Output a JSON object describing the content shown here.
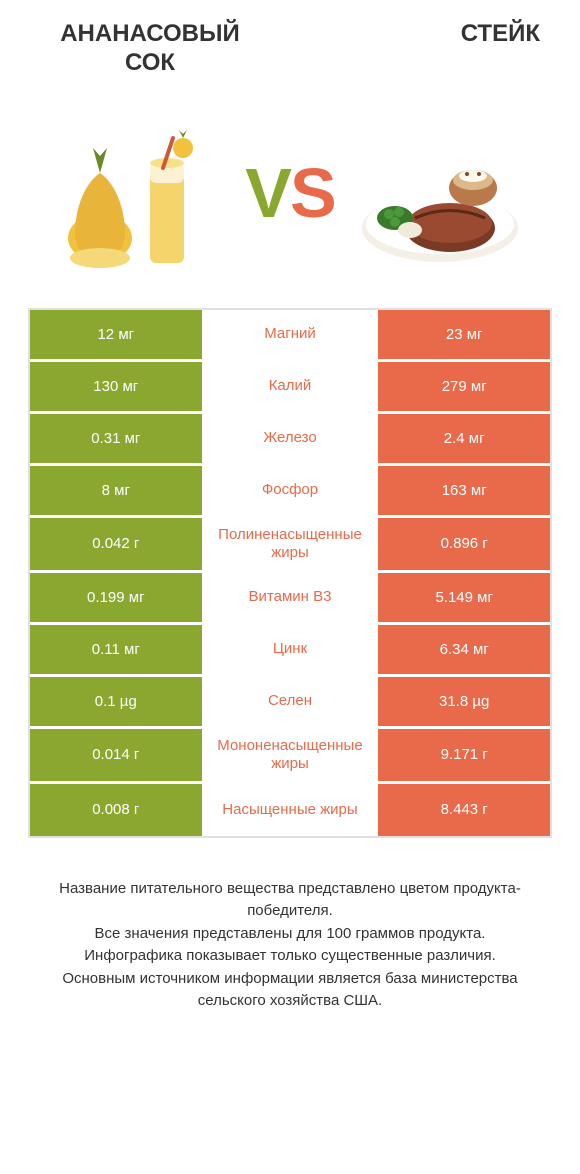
{
  "header": {
    "left_title": "АНАНАСОВЫЙ\nСОК",
    "right_title": "СТЕЙК"
  },
  "vs": {
    "v": "V",
    "s": "S"
  },
  "colors": {
    "left_bg": "#8aa82f",
    "right_bg": "#e86a4a",
    "left_text": "#8aa82f",
    "right_text": "#e86a4a",
    "row_sep": "#ffffff",
    "border": "#e0e0e0"
  },
  "typography": {
    "title_fontsize": 24,
    "cell_fontsize": 15,
    "vs_fontsize": 70,
    "footer_fontsize": 15
  },
  "table": {
    "rows": [
      {
        "left": "12 мг",
        "label": "Магний",
        "right": "23 мг",
        "winner": "right"
      },
      {
        "left": "130 мг",
        "label": "Калий",
        "right": "279 мг",
        "winner": "right"
      },
      {
        "left": "0.31 мг",
        "label": "Железо",
        "right": "2.4 мг",
        "winner": "right"
      },
      {
        "left": "8 мг",
        "label": "Фосфор",
        "right": "163 мг",
        "winner": "right"
      },
      {
        "left": "0.042 г",
        "label": "Полиненасыщенные жиры",
        "right": "0.896 г",
        "winner": "right"
      },
      {
        "left": "0.199 мг",
        "label": "Витамин B3",
        "right": "5.149 мг",
        "winner": "right"
      },
      {
        "left": "0.11 мг",
        "label": "Цинк",
        "right": "6.34 мг",
        "winner": "right"
      },
      {
        "left": "0.1 µg",
        "label": "Селен",
        "right": "31.8 µg",
        "winner": "right"
      },
      {
        "left": "0.014 г",
        "label": "Мононенасыщенные жиры",
        "right": "9.171 г",
        "winner": "right"
      },
      {
        "left": "0.008 г",
        "label": "Насыщенные жиры",
        "right": "8.443 г",
        "winner": "right"
      }
    ]
  },
  "footer": {
    "line1": "Название питательного вещества представлено цветом продукта-победителя.",
    "line2": "Все значения представлены для 100 граммов продукта.",
    "line3": "Инфографика показывает только существенные различия.",
    "line4": "Основным источником информации является база министерства сельского хозяйства США."
  },
  "images": {
    "left_alt": "pineapple-juice",
    "right_alt": "steak-plate"
  }
}
